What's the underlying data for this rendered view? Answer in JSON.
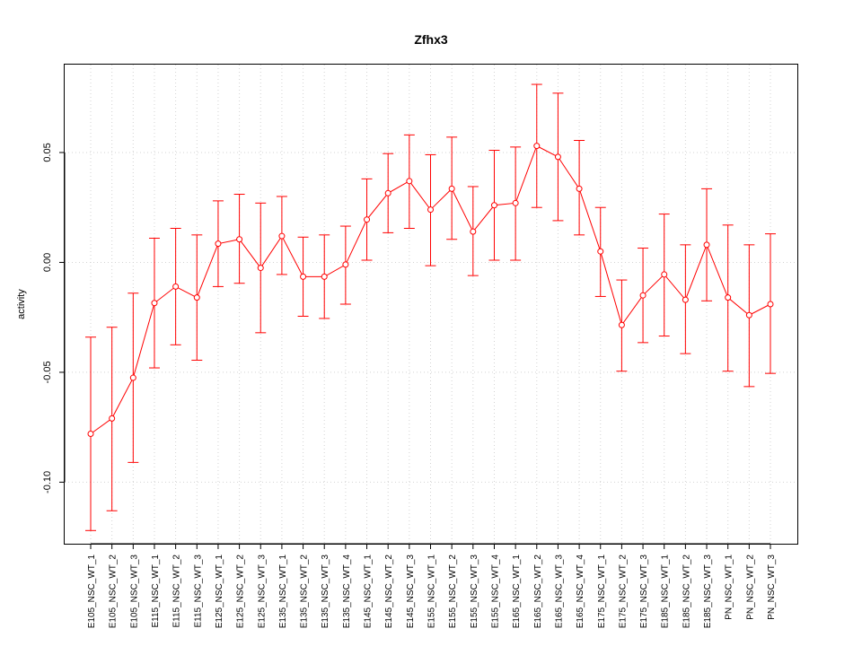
{
  "chart_data": {
    "type": "line",
    "title": "Zfhx3",
    "xlabel": "",
    "ylabel": "activity",
    "ylim": [
      -0.128,
      0.09
    ],
    "yticks": [
      -0.1,
      -0.05,
      0.0,
      0.05
    ],
    "ytick_labels": [
      "-0.10",
      "-0.05",
      "0.00",
      "0.05"
    ],
    "grid": true,
    "series_color": "#ff0000",
    "grid_color": "#d3d3d3",
    "categories": [
      "E105_NSC_WT_1",
      "E105_NSC_WT_2",
      "E105_NSC_WT_3",
      "E115_NSC_WT_1",
      "E115_NSC_WT_2",
      "E115_NSC_WT_3",
      "E125_NSC_WT_1",
      "E125_NSC_WT_2",
      "E125_NSC_WT_3",
      "E135_NSC_WT_1",
      "E135_NSC_WT_2",
      "E135_NSC_WT_3",
      "E135_NSC_WT_4",
      "E145_NSC_WT_1",
      "E145_NSC_WT_2",
      "E145_NSC_WT_3",
      "E155_NSC_WT_1",
      "E155_NSC_WT_2",
      "E155_NSC_WT_3",
      "E155_NSC_WT_4",
      "E165_NSC_WT_1",
      "E165_NSC_WT_2",
      "E165_NSC_WT_3",
      "E165_NSC_WT_4",
      "E175_NSC_WT_1",
      "E175_NSC_WT_2",
      "E175_NSC_WT_3",
      "E185_NSC_WT_1",
      "E185_NSC_WT_2",
      "E185_NSC_WT_3",
      "PN_NSC_WT_1",
      "PN_NSC_WT_2",
      "PN_NSC_WT_3"
    ],
    "values": [
      -0.078,
      -0.071,
      -0.0525,
      -0.0185,
      -0.011,
      -0.016,
      0.0085,
      0.0105,
      -0.0025,
      0.012,
      -0.0065,
      -0.0065,
      -0.001,
      0.0195,
      0.0315,
      0.037,
      0.024,
      0.0335,
      0.014,
      0.026,
      0.027,
      0.053,
      0.048,
      0.0335,
      0.005,
      -0.0285,
      -0.015,
      -0.0055,
      -0.017,
      0.008,
      -0.016,
      -0.024,
      -0.019
    ],
    "upper": [
      -0.034,
      -0.0295,
      -0.014,
      0.011,
      0.0155,
      0.0125,
      0.028,
      0.031,
      0.027,
      0.03,
      0.0115,
      0.0125,
      0.0165,
      0.038,
      0.0495,
      0.058,
      0.049,
      0.057,
      0.0345,
      0.051,
      0.0525,
      0.081,
      0.077,
      0.0555,
      0.025,
      -0.008,
      0.0065,
      0.022,
      0.008,
      0.0335,
      0.017,
      0.008,
      0.013
    ],
    "lower": [
      -0.122,
      -0.113,
      -0.091,
      -0.048,
      -0.0375,
      -0.0445,
      -0.011,
      -0.0095,
      -0.032,
      -0.0055,
      -0.0245,
      -0.0255,
      -0.019,
      0.001,
      0.0135,
      0.0155,
      -0.0015,
      0.0105,
      -0.006,
      0.001,
      0.001,
      0.025,
      0.019,
      0.0125,
      -0.0155,
      -0.0495,
      -0.0365,
      -0.0335,
      -0.0415,
      -0.0175,
      -0.0495,
      -0.0565,
      -0.0505
    ]
  }
}
